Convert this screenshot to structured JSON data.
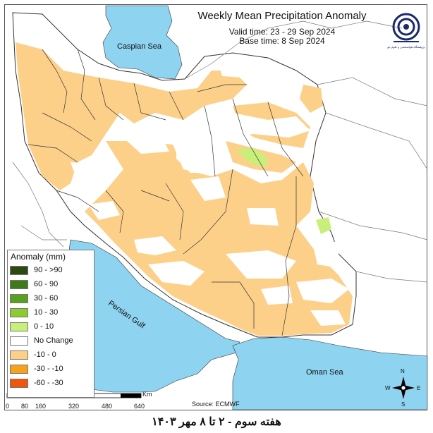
{
  "header": {
    "title": "Weekly Mean Precipitation Anomaly",
    "valid_time": "Valid time: 23 - 29 Sep 2024",
    "base_time": "Base time: 8 Sep 2024"
  },
  "logo": {
    "text": "پژوهشگاه هواشناسی و علوم جو"
  },
  "legend": {
    "title": "Anomaly (mm)",
    "items": [
      {
        "label": "90 - >90",
        "color": "#2b4a12"
      },
      {
        "label": "60 - 90",
        "color": "#3f7a1a"
      },
      {
        "label": "30 - 60",
        "color": "#58a020"
      },
      {
        "label": "10 - 30",
        "color": "#8ccc2e"
      },
      {
        "label": "0 - 10",
        "color": "#c8ef7a"
      },
      {
        "label": "No Change",
        "color": "#ffffff"
      },
      {
        "label": "-10 - 0",
        "color": "#fdd08a"
      },
      {
        "label": "-30 - -10",
        "color": "#f6a21a"
      },
      {
        "label": "-60 - -30",
        "color": "#f2560d"
      }
    ]
  },
  "map": {
    "sea_color": "#8ed3f0",
    "land_color": "#ffffff",
    "seas": [
      "Caspian Sea",
      "Persian Gulf",
      "Oman Sea"
    ]
  },
  "scale_bar": {
    "labels": [
      "0",
      "80",
      "160",
      "320",
      "480",
      "640"
    ],
    "unit": "Km"
  },
  "compass": {
    "n": "N",
    "e": "E",
    "s": "S",
    "w": "W"
  },
  "source": "Source: ECMWF",
  "footer": "هفته سوم - ۲ تا ۸ مهر ۱۴۰۳"
}
